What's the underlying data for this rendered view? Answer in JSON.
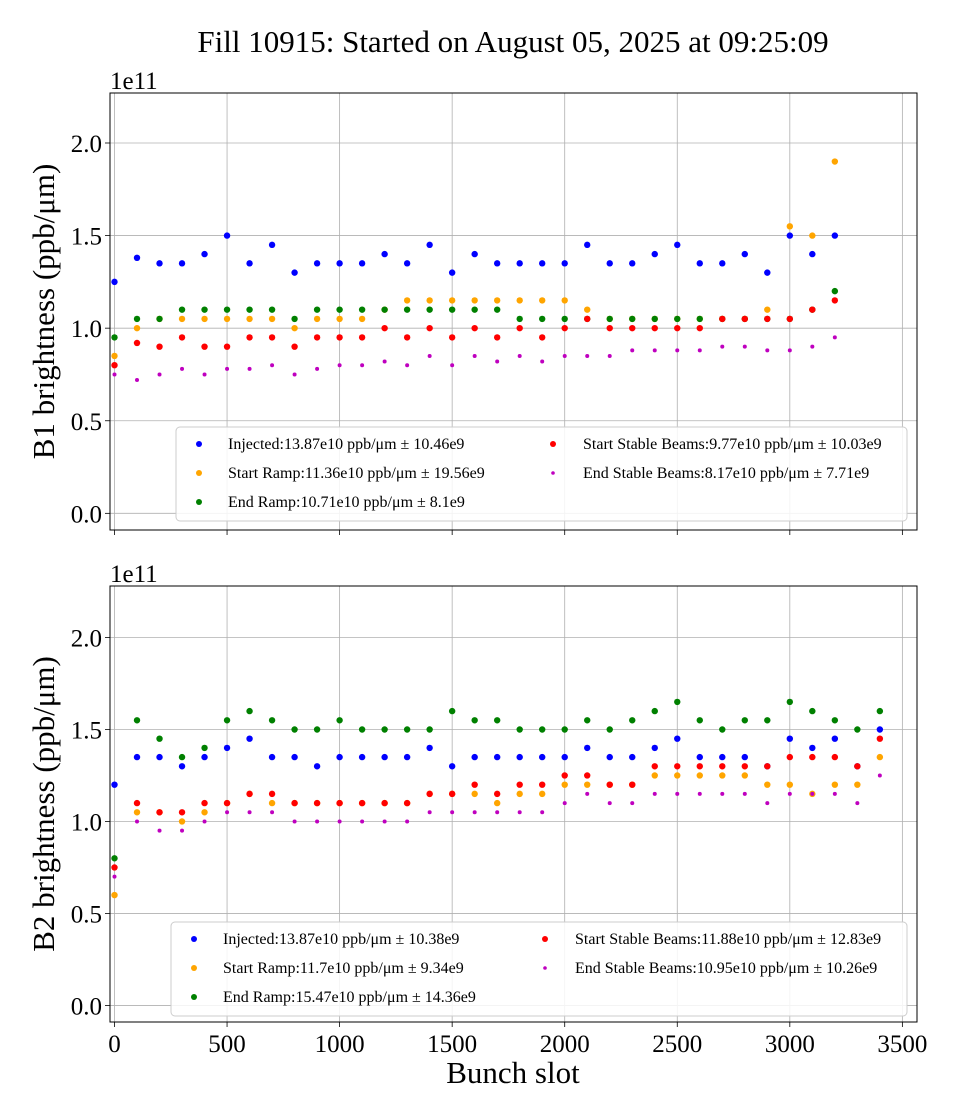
{
  "chart_data": {
    "title": "Fill 10915: Started on August 05, 2025 at 09:25:09",
    "xlabel": "Bunch slot",
    "xlim": [
      -20,
      3565
    ],
    "xticks": [
      "0",
      "500",
      "1000",
      "1500",
      "2000",
      "2500",
      "3000",
      "3500"
    ],
    "xtick_values": [
      0,
      500,
      1000,
      1500,
      2000,
      2500,
      3000,
      3500
    ],
    "grid": true,
    "legend_placement": "lower-right",
    "colors": {
      "Injected": "#0000ff",
      "Start Ramp": "#ffa500",
      "End Ramp": "#008000",
      "Start Stable Beams": "#ff0000",
      "End Stable Beams": "#bf00bf"
    },
    "panels": [
      {
        "type": "scatter",
        "ylabel": "B1 brightness (ppb/μm)",
        "offset_label": "1e11",
        "ylim": [
          -0.09,
          2.27
        ],
        "yticks": [
          "0.0",
          "0.5",
          "1.0",
          "1.5",
          "2.0"
        ],
        "ytick_values": [
          0,
          0.5,
          1.0,
          1.5,
          2.0
        ],
        "x": [
          0,
          100,
          200,
          300,
          400,
          500,
          600,
          700,
          800,
          900,
          1000,
          1100,
          1200,
          1300,
          1400,
          1500,
          1600,
          1700,
          1800,
          1900,
          2000,
          2100,
          2200,
          2300,
          2400,
          2500,
          2600,
          2700,
          2800,
          2900,
          3000,
          3100,
          3200
        ],
        "series": [
          {
            "name": "Injected",
            "legend": "Injected:13.87e10 ppb/μm ± 10.46e9",
            "values": [
              1.25,
              1.38,
              1.35,
              1.35,
              1.4,
              1.5,
              1.35,
              1.45,
              1.3,
              1.35,
              1.35,
              1.35,
              1.4,
              1.35,
              1.45,
              1.3,
              1.4,
              1.35,
              1.35,
              1.35,
              1.35,
              1.45,
              1.35,
              1.35,
              1.4,
              1.45,
              1.35,
              1.35,
              1.4,
              1.3,
              1.5,
              1.4,
              1.5
            ]
          },
          {
            "name": "Start Ramp",
            "legend": "Start Ramp:11.36e10 ppb/μm ± 19.56e9",
            "values": [
              0.85,
              1.0,
              1.05,
              1.05,
              1.05,
              1.05,
              1.05,
              1.05,
              1.0,
              1.05,
              1.05,
              1.05,
              1.1,
              1.15,
              1.15,
              1.15,
              1.15,
              1.15,
              1.15,
              1.15,
              1.15,
              1.1,
              1.05,
              1.05,
              1.05,
              1.05,
              1.05,
              1.05,
              1.05,
              1.1,
              1.55,
              1.5,
              1.9
            ]
          },
          {
            "name": "End Ramp",
            "legend": "End Ramp:10.71e10 ppb/μm ± 8.1e9",
            "values": [
              0.95,
              1.05,
              1.05,
              1.1,
              1.1,
              1.1,
              1.1,
              1.1,
              1.05,
              1.1,
              1.1,
              1.1,
              1.1,
              1.1,
              1.1,
              1.1,
              1.1,
              1.1,
              1.05,
              1.05,
              1.05,
              1.05,
              1.05,
              1.05,
              1.05,
              1.05,
              1.05,
              1.05,
              1.05,
              1.05,
              1.05,
              1.1,
              1.2
            ]
          },
          {
            "name": "Start Stable Beams",
            "legend": "Start Stable Beams:9.77e10 ppb/μm ± 10.03e9",
            "values": [
              0.8,
              0.92,
              0.9,
              0.95,
              0.9,
              0.9,
              0.95,
              0.95,
              0.9,
              0.95,
              0.95,
              0.95,
              1.0,
              0.95,
              1.0,
              0.95,
              1.0,
              0.95,
              1.0,
              0.95,
              1.0,
              1.05,
              1.0,
              1.0,
              1.0,
              1.0,
              1.0,
              1.05,
              1.05,
              1.05,
              1.05,
              1.1,
              1.15
            ]
          },
          {
            "name": "End Stable Beams",
            "legend": "End Stable Beams:8.17e10 ppb/μm ± 7.71e9",
            "values": [
              0.75,
              0.72,
              0.75,
              0.78,
              0.75,
              0.78,
              0.78,
              0.8,
              0.75,
              0.78,
              0.8,
              0.8,
              0.82,
              0.8,
              0.85,
              0.8,
              0.85,
              0.82,
              0.85,
              0.82,
              0.85,
              0.85,
              0.85,
              0.88,
              0.88,
              0.88,
              0.88,
              0.9,
              0.9,
              0.88,
              0.88,
              0.9,
              0.95
            ]
          }
        ]
      },
      {
        "type": "scatter",
        "ylabel": "B2 brightness (ppb/μm)",
        "offset_label": "1e11",
        "ylim": [
          -0.09,
          2.28
        ],
        "yticks": [
          "0.0",
          "0.5",
          "1.0",
          "1.5",
          "2.0"
        ],
        "ytick_values": [
          0,
          0.5,
          1.0,
          1.5,
          2.0
        ],
        "x": [
          0,
          100,
          200,
          300,
          400,
          500,
          600,
          700,
          800,
          900,
          1000,
          1100,
          1200,
          1300,
          1400,
          1500,
          1600,
          1700,
          1800,
          1900,
          2000,
          2100,
          2200,
          2300,
          2400,
          2500,
          2600,
          2700,
          2800,
          2900,
          3000,
          3100,
          3200,
          3300,
          3400
        ],
        "series": [
          {
            "name": "Injected",
            "legend": "Injected:13.87e10 ppb/μm ± 10.38e9",
            "values": [
              1.2,
              1.35,
              1.35,
              1.3,
              1.35,
              1.4,
              1.45,
              1.35,
              1.35,
              1.3,
              1.35,
              1.35,
              1.35,
              1.35,
              1.4,
              1.3,
              1.35,
              1.35,
              1.35,
              1.35,
              1.35,
              1.4,
              1.35,
              1.35,
              1.4,
              1.45,
              1.35,
              1.35,
              1.35,
              1.3,
              1.45,
              1.4,
              1.45,
              1.3,
              1.5
            ]
          },
          {
            "name": "Start Ramp",
            "legend": "Start Ramp:11.7e10 ppb/μm ± 9.34e9",
            "values": [
              0.6,
              1.05,
              1.05,
              1.0,
              1.05,
              1.1,
              1.15,
              1.1,
              1.1,
              1.1,
              1.1,
              1.1,
              1.1,
              1.1,
              1.15,
              1.15,
              1.15,
              1.1,
              1.15,
              1.15,
              1.2,
              1.2,
              1.2,
              1.2,
              1.25,
              1.25,
              1.25,
              1.25,
              1.25,
              1.2,
              1.2,
              1.15,
              1.2,
              1.2,
              1.35
            ]
          },
          {
            "name": "End Ramp",
            "legend": "End Ramp:15.47e10 ppb/μm ± 14.36e9",
            "values": [
              0.8,
              1.55,
              1.45,
              1.35,
              1.4,
              1.55,
              1.6,
              1.55,
              1.5,
              1.5,
              1.55,
              1.5,
              1.5,
              1.5,
              1.5,
              1.6,
              1.55,
              1.55,
              1.5,
              1.5,
              1.5,
              1.55,
              1.5,
              1.55,
              1.6,
              1.65,
              1.55,
              1.5,
              1.55,
              1.55,
              1.65,
              1.6,
              1.55,
              1.5,
              1.6
            ]
          },
          {
            "name": "Start Stable Beams",
            "legend": "Start Stable Beams:11.88e10 ppb/μm ± 12.83e9",
            "values": [
              0.75,
              1.1,
              1.05,
              1.05,
              1.1,
              1.1,
              1.15,
              1.15,
              1.1,
              1.1,
              1.1,
              1.1,
              1.1,
              1.1,
              1.15,
              1.15,
              1.2,
              1.15,
              1.2,
              1.2,
              1.25,
              1.25,
              1.2,
              1.2,
              1.3,
              1.3,
              1.3,
              1.3,
              1.3,
              1.3,
              1.35,
              1.35,
              1.35,
              1.3,
              1.45
            ]
          },
          {
            "name": "End Stable Beams",
            "legend": "End Stable Beams:10.95e10 ppb/μm ± 10.26e9",
            "values": [
              0.7,
              1.0,
              0.95,
              0.95,
              1.0,
              1.05,
              1.05,
              1.05,
              1.0,
              1.0,
              1.0,
              1.0,
              1.0,
              1.0,
              1.05,
              1.05,
              1.05,
              1.05,
              1.05,
              1.05,
              1.1,
              1.15,
              1.1,
              1.1,
              1.15,
              1.15,
              1.15,
              1.15,
              1.15,
              1.1,
              1.15,
              1.15,
              1.15,
              1.1,
              1.25
            ]
          }
        ]
      }
    ]
  }
}
